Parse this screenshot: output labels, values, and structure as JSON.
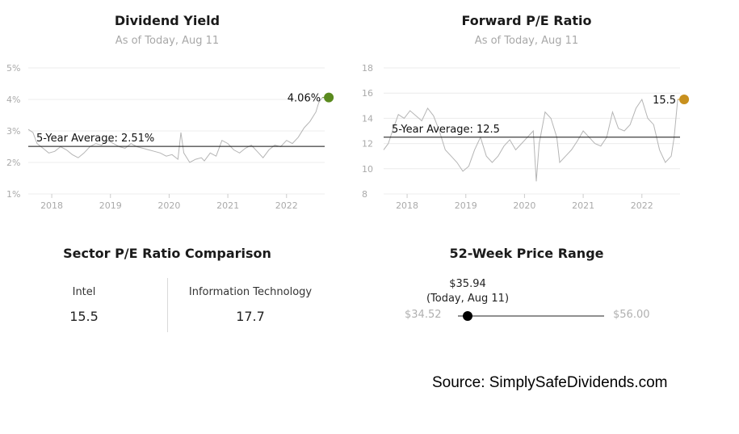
{
  "chart_data": [
    {
      "type": "line",
      "title": "Dividend Yield",
      "subtitle": "As of Today, Aug 11",
      "y_ticks": [
        "5%",
        "4%",
        "3%",
        "2%",
        "1%"
      ],
      "x_ticks": [
        "2018",
        "2019",
        "2020",
        "2021",
        "2022"
      ],
      "ylim": [
        1,
        5
      ],
      "xlim": [
        2017.6,
        2022.65
      ],
      "average": 2.51,
      "average_label": "5-Year Average: 2.51%",
      "current": 4.06,
      "current_label": "4.06%",
      "grid": true,
      "line_color": "#b5b5b5",
      "marker_color": "#5a8a1e",
      "series": [
        {
          "x": [
            2017.6,
            2017.68,
            2017.75,
            2017.85,
            2017.95,
            2018.05,
            2018.15,
            2018.25,
            2018.35,
            2018.45,
            2018.55,
            2018.65,
            2018.75,
            2018.85,
            2018.95,
            2019.05,
            2019.15,
            2019.25,
            2019.35,
            2019.45,
            2019.55,
            2019.65,
            2019.75,
            2019.85,
            2019.95,
            2020.05,
            2020.15,
            2020.2,
            2020.25,
            2020.35,
            2020.45,
            2020.55,
            2020.6,
            2020.7,
            2020.8,
            2020.9,
            2021.0,
            2021.1,
            2021.2,
            2021.3,
            2021.4,
            2021.5,
            2021.6,
            2021.7,
            2021.8,
            2021.9,
            2022.0,
            2022.1,
            2022.2,
            2022.3,
            2022.4,
            2022.5,
            2022.55,
            2022.61
          ],
          "y": [
            3.05,
            2.95,
            2.6,
            2.45,
            2.3,
            2.35,
            2.5,
            2.4,
            2.25,
            2.15,
            2.3,
            2.5,
            2.6,
            2.55,
            2.7,
            2.6,
            2.5,
            2.45,
            2.6,
            2.5,
            2.45,
            2.4,
            2.35,
            2.3,
            2.2,
            2.25,
            2.1,
            2.95,
            2.3,
            2.0,
            2.1,
            2.15,
            2.05,
            2.3,
            2.2,
            2.7,
            2.6,
            2.4,
            2.3,
            2.45,
            2.55,
            2.35,
            2.15,
            2.4,
            2.55,
            2.5,
            2.7,
            2.6,
            2.8,
            3.1,
            3.3,
            3.6,
            3.9,
            4.06
          ]
        }
      ]
    },
    {
      "type": "line",
      "title": "Forward P/E Ratio",
      "subtitle": "As of Today, Aug 11",
      "y_ticks": [
        "18",
        "16",
        "14",
        "12",
        "10",
        "8"
      ],
      "x_ticks": [
        "2018",
        "2019",
        "2020",
        "2021",
        "2022"
      ],
      "ylim": [
        8,
        18
      ],
      "xlim": [
        2017.6,
        2022.65
      ],
      "average": 12.5,
      "average_label": "5-Year Average: 12.5",
      "current": 15.5,
      "current_label": "15.5",
      "grid": true,
      "line_color": "#b5b5b5",
      "marker_color": "#c8901e",
      "series": [
        {
          "x": [
            2017.6,
            2017.68,
            2017.75,
            2017.85,
            2017.95,
            2018.05,
            2018.15,
            2018.25,
            2018.35,
            2018.45,
            2018.55,
            2018.65,
            2018.75,
            2018.85,
            2018.95,
            2019.05,
            2019.15,
            2019.25,
            2019.35,
            2019.45,
            2019.55,
            2019.65,
            2019.75,
            2019.85,
            2019.95,
            2020.05,
            2020.15,
            2020.2,
            2020.25,
            2020.35,
            2020.45,
            2020.55,
            2020.6,
            2020.7,
            2020.8,
            2020.9,
            2021.0,
            2021.1,
            2021.2,
            2021.3,
            2021.4,
            2021.5,
            2021.6,
            2021.7,
            2021.8,
            2021.9,
            2022.0,
            2022.1,
            2022.2,
            2022.3,
            2022.4,
            2022.5,
            2022.55,
            2022.61
          ],
          "y": [
            11.5,
            12.0,
            13.0,
            14.3,
            14.0,
            14.6,
            14.2,
            13.8,
            14.8,
            14.2,
            13.0,
            11.5,
            11.0,
            10.5,
            9.8,
            10.2,
            11.5,
            12.5,
            11.0,
            10.5,
            11.0,
            11.8,
            12.3,
            11.5,
            12.0,
            12.5,
            13.0,
            9.0,
            12.0,
            14.5,
            14.0,
            12.5,
            10.5,
            11.0,
            11.5,
            12.2,
            13.0,
            12.5,
            12.0,
            11.8,
            12.5,
            14.5,
            13.2,
            13.0,
            13.5,
            14.8,
            15.5,
            14.0,
            13.5,
            11.5,
            10.5,
            11.0,
            12.5,
            15.5
          ]
        }
      ]
    }
  ],
  "sector_pe": {
    "title": "Sector P/E Ratio Comparison",
    "left_label": "Intel",
    "left_value": "15.5",
    "right_label": "Information Technology",
    "right_value": "17.7"
  },
  "price_range": {
    "title": "52-Week Price Range",
    "low_label": "$34.52",
    "high_label": "$56.00",
    "low": 34.52,
    "high": 56.0,
    "current": 35.94,
    "current_price": "$35.94",
    "current_note": "(Today, Aug 11)"
  },
  "source": "Source: SimplySafeDividends.com"
}
